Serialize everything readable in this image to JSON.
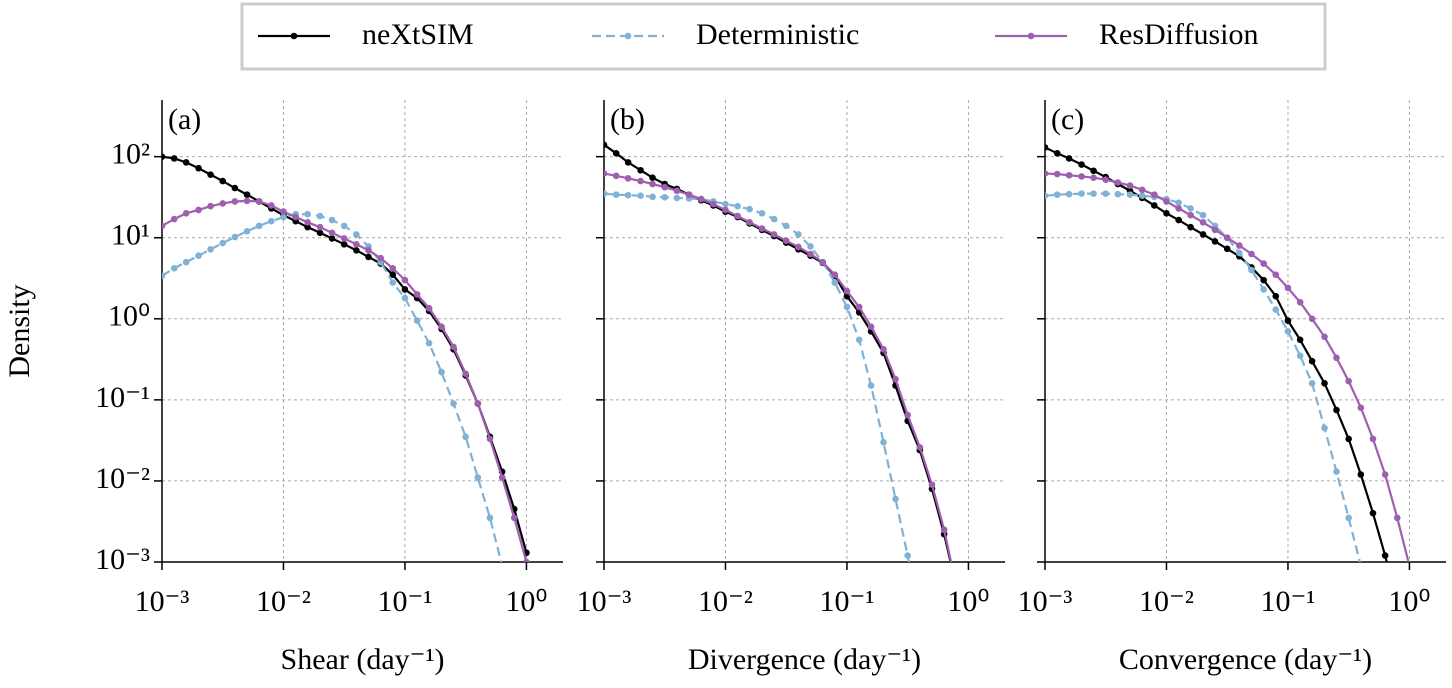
{
  "chart_data": [
    {
      "type": "line",
      "annotation": "(a)",
      "xlabel": "Shear (day⁻¹)",
      "ylabel": "Density",
      "xscale": "log",
      "yscale": "log",
      "grid": true,
      "legend": "upper center",
      "xlim": [
        0.001,
        2
      ],
      "ylim": [
        0.001,
        500
      ],
      "xticks": [
        {
          "value": 0.001,
          "label": "10⁻³"
        },
        {
          "value": 0.01,
          "label": "10⁻²"
        },
        {
          "value": 0.1,
          "label": "10⁻¹"
        },
        {
          "value": 1,
          "label": "10⁰"
        }
      ],
      "yticks": [
        {
          "value": 0.001,
          "label": "10⁻³"
        },
        {
          "value": 0.01,
          "label": "10⁻²"
        },
        {
          "value": 0.1,
          "label": "10⁻¹"
        },
        {
          "value": 1,
          "label": "10⁰"
        },
        {
          "value": 10,
          "label": "10¹"
        },
        {
          "value": 100,
          "label": "10²"
        }
      ],
      "x": [
        0.001,
        0.00126,
        0.00158,
        0.002,
        0.00251,
        0.00316,
        0.00398,
        0.00501,
        0.00631,
        0.00794,
        0.01,
        0.0126,
        0.0158,
        0.02,
        0.0251,
        0.0316,
        0.0398,
        0.0501,
        0.0631,
        0.0794,
        0.1,
        0.126,
        0.158,
        0.2,
        0.251,
        0.316,
        0.398,
        0.501,
        0.631,
        0.794,
        1.0
      ],
      "series": [
        {
          "name": "neXtSIM",
          "color": "#000000",
          "linestyle": "solid",
          "values": [
            100,
            95,
            85,
            72,
            60,
            50,
            41,
            34,
            28,
            23,
            19,
            16,
            13.5,
            11.5,
            9.8,
            8.3,
            7.0,
            5.8,
            4.8,
            3.5,
            2.3,
            1.8,
            1.25,
            0.75,
            0.42,
            0.2,
            0.09,
            0.035,
            0.013,
            0.0045,
            0.0013
          ]
        },
        {
          "name": "Deterministic",
          "color": "#7fb2d5",
          "linestyle": "dashed",
          "values": [
            3.4,
            4.2,
            5.0,
            6.0,
            7.2,
            8.6,
            10.2,
            12,
            14,
            16,
            18,
            19.5,
            19.5,
            18.5,
            16.5,
            14,
            11,
            7.8,
            5.0,
            2.8,
            1.8,
            0.95,
            0.5,
            0.22,
            0.09,
            0.035,
            0.011,
            0.0035,
            0.0009,
            null,
            null
          ]
        },
        {
          "name": "ResDiffusion",
          "color": "#9e5fae",
          "linestyle": "solid",
          "values": [
            14,
            17,
            20,
            22,
            24.5,
            26.5,
            28,
            28.5,
            28,
            25,
            21,
            18,
            15.5,
            13.5,
            11.5,
            9.8,
            8.3,
            7.0,
            5.6,
            4.2,
            3.0,
            2.0,
            1.35,
            0.8,
            0.45,
            0.21,
            0.09,
            0.033,
            0.011,
            0.0035,
            0.001
          ]
        }
      ]
    },
    {
      "type": "line",
      "annotation": "(b)",
      "xlabel": "Divergence (day⁻¹)",
      "xscale": "log",
      "yscale": "log",
      "grid": true,
      "sharey": true,
      "xlim": [
        0.001,
        2
      ],
      "ylim": [
        0.001,
        500
      ],
      "xticks": [
        {
          "value": 0.001,
          "label": "10⁻³"
        },
        {
          "value": 0.01,
          "label": "10⁻²"
        },
        {
          "value": 0.1,
          "label": "10⁻¹"
        },
        {
          "value": 1,
          "label": "10⁰"
        }
      ],
      "x": [
        0.001,
        0.00126,
        0.00158,
        0.002,
        0.00251,
        0.00316,
        0.00398,
        0.00501,
        0.00631,
        0.00794,
        0.01,
        0.0126,
        0.0158,
        0.02,
        0.0251,
        0.0316,
        0.0398,
        0.0501,
        0.0631,
        0.0794,
        0.1,
        0.126,
        0.158,
        0.2,
        0.251,
        0.316,
        0.398,
        0.501,
        0.631,
        0.794,
        1.0
      ],
      "series": [
        {
          "name": "neXtSIM",
          "color": "#000000",
          "linestyle": "solid",
          "values": [
            140,
            110,
            85,
            68,
            55,
            46,
            40,
            34,
            29,
            25,
            21,
            18,
            15,
            12.5,
            10.5,
            8.7,
            7.2,
            6.0,
            4.9,
            3.4,
            1.9,
            1.2,
            0.7,
            0.38,
            0.15,
            0.055,
            0.024,
            0.008,
            0.0022,
            0.0005,
            null
          ]
        },
        {
          "name": "Deterministic",
          "color": "#7fb2d5",
          "linestyle": "dashed",
          "values": [
            35,
            34,
            33.5,
            33,
            32,
            31.5,
            31,
            30.5,
            30,
            28,
            26,
            24.5,
            22.5,
            20,
            17,
            14,
            11,
            7.8,
            5.0,
            2.8,
            1.4,
            0.55,
            0.15,
            0.03,
            0.006,
            0.0012,
            0.0002,
            null,
            null,
            null,
            null
          ]
        },
        {
          "name": "ResDiffusion",
          "color": "#9e5fae",
          "linestyle": "solid",
          "values": [
            62,
            58,
            54,
            50,
            46,
            42,
            38,
            34,
            30,
            26,
            22,
            18.5,
            15.5,
            13,
            11,
            9.2,
            7.7,
            6.3,
            5.0,
            3.5,
            2.2,
            1.4,
            0.8,
            0.42,
            0.18,
            0.065,
            0.026,
            0.009,
            0.0025,
            0.0005,
            null
          ]
        }
      ]
    },
    {
      "type": "line",
      "annotation": "(c)",
      "xlabel": "Convergence (day⁻¹)",
      "xscale": "log",
      "yscale": "log",
      "grid": true,
      "sharey": true,
      "xlim": [
        0.001,
        2
      ],
      "ylim": [
        0.001,
        500
      ],
      "xticks": [
        {
          "value": 0.001,
          "label": "10⁻³"
        },
        {
          "value": 0.01,
          "label": "10⁻²"
        },
        {
          "value": 0.1,
          "label": "10⁻¹"
        },
        {
          "value": 1,
          "label": "10⁰"
        }
      ],
      "x": [
        0.001,
        0.00126,
        0.00158,
        0.002,
        0.00251,
        0.00316,
        0.00398,
        0.00501,
        0.00631,
        0.00794,
        0.01,
        0.0126,
        0.0158,
        0.02,
        0.0251,
        0.0316,
        0.0398,
        0.0501,
        0.0631,
        0.0794,
        0.1,
        0.126,
        0.158,
        0.2,
        0.251,
        0.316,
        0.398,
        0.501,
        0.631,
        0.794,
        1.0
      ],
      "series": [
        {
          "name": "neXtSIM",
          "color": "#000000",
          "linestyle": "solid",
          "values": [
            130,
            110,
            95,
            80,
            67,
            56,
            46,
            38,
            31,
            25,
            20,
            16.5,
            13.5,
            11,
            9,
            7.3,
            5.9,
            4.3,
            3.0,
            1.9,
            0.95,
            0.55,
            0.3,
            0.16,
            0.075,
            0.033,
            0.012,
            0.004,
            0.0012,
            0.0003,
            null
          ]
        },
        {
          "name": "Deterministic",
          "color": "#7fb2d5",
          "linestyle": "dashed",
          "values": [
            33,
            34,
            34.5,
            35,
            35,
            35,
            34.5,
            34,
            33,
            32,
            30,
            27,
            23,
            19,
            14,
            10,
            6.5,
            4.0,
            2.3,
            1.3,
            0.7,
            0.35,
            0.16,
            0.045,
            0.013,
            0.0035,
            0.0009,
            null,
            null,
            null,
            null
          ]
        },
        {
          "name": "ResDiffusion",
          "color": "#9e5fae",
          "linestyle": "solid",
          "values": [
            62,
            61,
            59,
            57,
            55,
            52,
            48,
            44,
            39,
            34,
            28,
            23,
            19,
            15.5,
            12.5,
            10,
            8.0,
            6.3,
            4.8,
            3.5,
            2.4,
            1.6,
            1.0,
            0.6,
            0.33,
            0.17,
            0.08,
            0.033,
            0.012,
            0.0035,
            0.0009
          ]
        }
      ]
    }
  ]
}
